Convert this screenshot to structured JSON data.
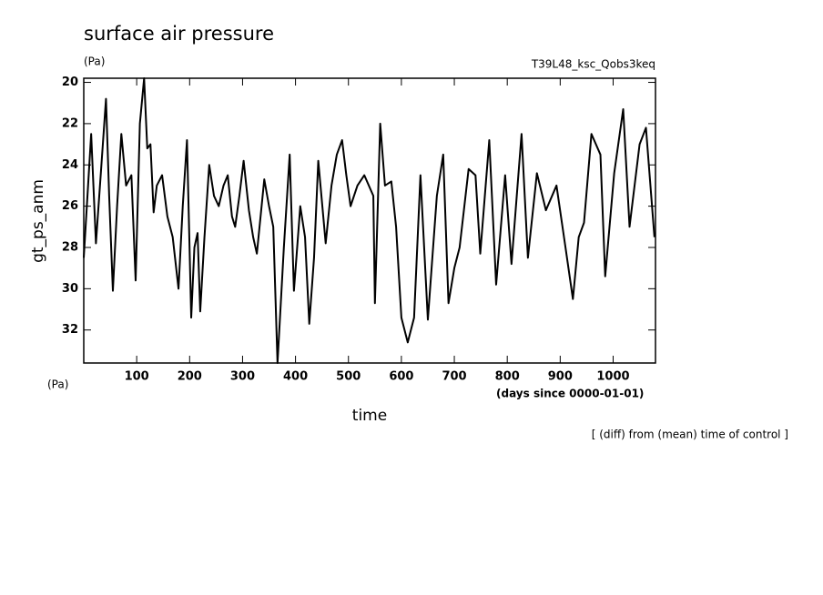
{
  "chart_data": {
    "type": "line",
    "title": "surface air pressure",
    "units_top": "(Pa)",
    "run_label": "T39L48_ksc_Qobs3keq",
    "y_label": "gt_ps_anm",
    "units_bottom": "(Pa)",
    "x_label": "time",
    "x_units": "(days since 0000-01-01)",
    "note": "[ (diff) from (mean) time of control ]",
    "color": "#000000",
    "invert_y": true,
    "xlim": [
      0,
      1080
    ],
    "ylim": [
      19.8,
      33.6
    ],
    "xticks": [
      100,
      200,
      300,
      400,
      500,
      600,
      700,
      800,
      900,
      1000
    ],
    "yticks": [
      20,
      22,
      24,
      26,
      28,
      30,
      32
    ],
    "x": [
      0,
      7,
      14,
      23,
      32,
      42,
      48,
      55,
      63,
      71,
      80,
      90,
      98,
      106,
      114,
      120,
      126,
      132,
      138,
      148,
      158,
      168,
      179,
      187,
      195,
      203,
      209,
      215,
      220,
      228,
      237,
      246,
      255,
      264,
      272,
      280,
      286,
      294,
      302,
      312,
      320,
      327,
      334,
      341,
      350,
      358,
      366,
      378,
      389,
      397,
      409,
      418,
      426,
      435,
      443,
      457,
      468,
      478,
      488,
      496,
      504,
      517,
      530,
      547,
      550,
      560,
      569,
      581,
      590,
      600,
      612,
      624,
      636,
      650,
      667,
      679,
      689,
      700,
      710,
      727,
      740,
      749,
      766,
      779,
      796,
      808,
      827,
      839,
      856,
      873,
      893,
      910,
      924,
      935,
      945,
      959,
      976,
      985,
      1002,
      1019,
      1031,
      1050,
      1062,
      1078
    ],
    "values": [
      28.5,
      25.5,
      22.5,
      27.8,
      24.5,
      20.8,
      25.5,
      30.1,
      26.0,
      22.5,
      25.0,
      24.5,
      29.6,
      22.0,
      19.8,
      23.2,
      23.0,
      26.3,
      25.0,
      24.5,
      26.5,
      27.5,
      30.0,
      26.0,
      22.8,
      31.4,
      28.0,
      27.3,
      31.1,
      27.5,
      24.0,
      25.5,
      26.0,
      25.0,
      24.5,
      26.5,
      27.0,
      25.5,
      23.8,
      26.2,
      27.5,
      28.3,
      26.5,
      24.7,
      26.0,
      27.0,
      33.6,
      28.0,
      23.5,
      30.1,
      26.0,
      27.5,
      31.7,
      28.5,
      23.8,
      27.8,
      25.0,
      23.5,
      22.8,
      24.5,
      26.0,
      25.0,
      24.5,
      25.5,
      30.7,
      22.0,
      25.0,
      24.8,
      27.0,
      31.4,
      32.6,
      31.4,
      24.5,
      31.5,
      25.5,
      23.5,
      30.7,
      29.0,
      28.0,
      24.2,
      24.5,
      28.3,
      22.8,
      29.8,
      24.5,
      28.8,
      22.5,
      28.5,
      24.4,
      26.2,
      25.0,
      28.0,
      30.5,
      27.5,
      26.8,
      22.5,
      23.5,
      29.4,
      24.4,
      21.3,
      27.0,
      23.0,
      22.2,
      27.5
    ]
  }
}
